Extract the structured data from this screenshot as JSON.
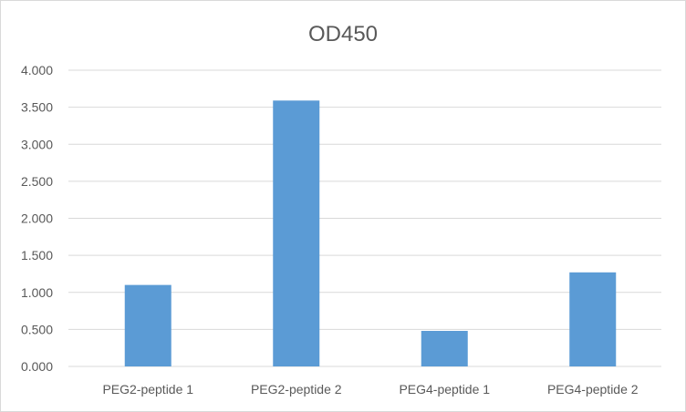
{
  "chart_data": {
    "type": "bar",
    "title": "OD450",
    "categories": [
      "PEG2-peptide  1",
      "PEG2-peptide  2",
      "PEG4-peptide  1",
      "PEG4-peptide  2"
    ],
    "values": [
      1.1,
      3.59,
      0.48,
      1.27
    ],
    "ylim": [
      0,
      4
    ],
    "yticks": [
      "0.000",
      "0.500",
      "1.000",
      "1.500",
      "2.000",
      "2.500",
      "3.000",
      "3.500",
      "4.000"
    ],
    "grid": true,
    "legend": "none",
    "bar_color": "#5b9bd5",
    "grid_color": "#d9d9d9",
    "text_color": "#595959"
  }
}
